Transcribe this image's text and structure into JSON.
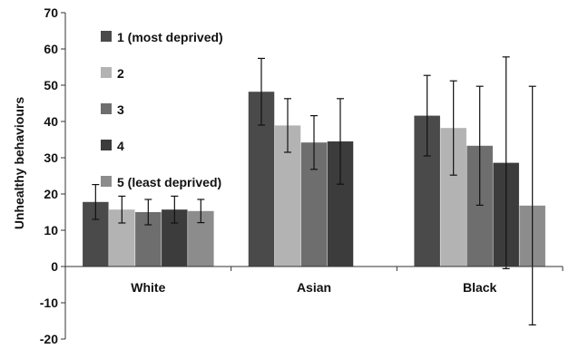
{
  "chart_data": {
    "type": "bar",
    "ylabel": "Unhealthy behaviours",
    "xlabel": "",
    "ylim": [
      -20,
      70
    ],
    "yticks": [
      -20,
      -10,
      0,
      10,
      20,
      30,
      40,
      50,
      60,
      70
    ],
    "grid": false,
    "legend_position": "top-left",
    "categories": [
      "White",
      "Asian",
      "Black"
    ],
    "series": [
      {
        "name": "1 (most deprived)",
        "color": "#4a4a4a",
        "values": [
          17.8,
          48.2,
          41.6
        ],
        "error_low": [
          13.0,
          39.0,
          30.5
        ],
        "error_high": [
          22.6,
          57.4,
          52.7
        ]
      },
      {
        "name": "2",
        "color": "#b3b3b3",
        "values": [
          15.7,
          38.9,
          38.2
        ],
        "error_low": [
          12.0,
          31.5,
          25.2
        ],
        "error_high": [
          19.4,
          46.3,
          51.2
        ]
      },
      {
        "name": "3",
        "color": "#6e6e6e",
        "values": [
          15.0,
          34.2,
          33.3
        ],
        "error_low": [
          11.5,
          26.8,
          16.9
        ],
        "error_high": [
          18.5,
          41.6,
          49.7
        ]
      },
      {
        "name": "4",
        "color": "#3c3c3c",
        "values": [
          15.7,
          34.5,
          28.6
        ],
        "error_low": [
          12.0,
          22.7,
          -0.6
        ],
        "error_high": [
          19.4,
          46.3,
          57.8
        ]
      },
      {
        "name": "5 (least deprived)",
        "color": "#8c8c8c",
        "values": [
          15.3,
          null,
          16.8
        ],
        "error_low": [
          12.1,
          null,
          -16.1
        ],
        "error_high": [
          18.5,
          null,
          49.7
        ]
      }
    ]
  }
}
